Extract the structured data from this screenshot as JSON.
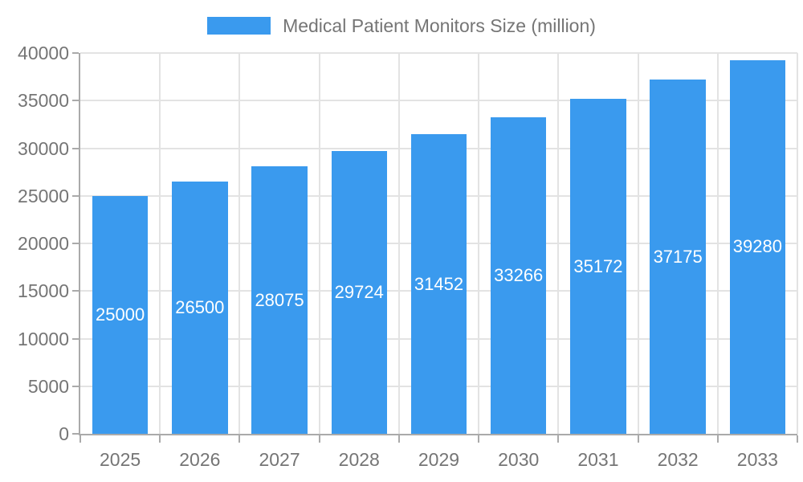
{
  "chart_data": {
    "type": "bar",
    "title": "Medical Patient Monitors Size (million)",
    "categories": [
      "2025",
      "2026",
      "2027",
      "2028",
      "2029",
      "2030",
      "2031",
      "2032",
      "2033"
    ],
    "values": [
      25000,
      26500,
      28075,
      29724,
      31452,
      33266,
      35172,
      37175,
      39280
    ],
    "xlabel": "",
    "ylabel": "",
    "ylim": [
      0,
      40000
    ],
    "ytick_step": 5000,
    "ytick_labels": [
      "0",
      "5000",
      "10000",
      "15000",
      "20000",
      "25000",
      "30000",
      "35000",
      "40000"
    ],
    "grid": true,
    "legend_position": "top-center",
    "bar_width_fraction": 0.7,
    "value_labels_inside": true,
    "colors": {
      "bar": "#3A9AEE",
      "value_label": "#FFFFFF",
      "axis_text": "#757575",
      "grid_line": "#E3E3E3",
      "axis_line": "#AAAAAA",
      "background": "#FFFFFF"
    }
  }
}
